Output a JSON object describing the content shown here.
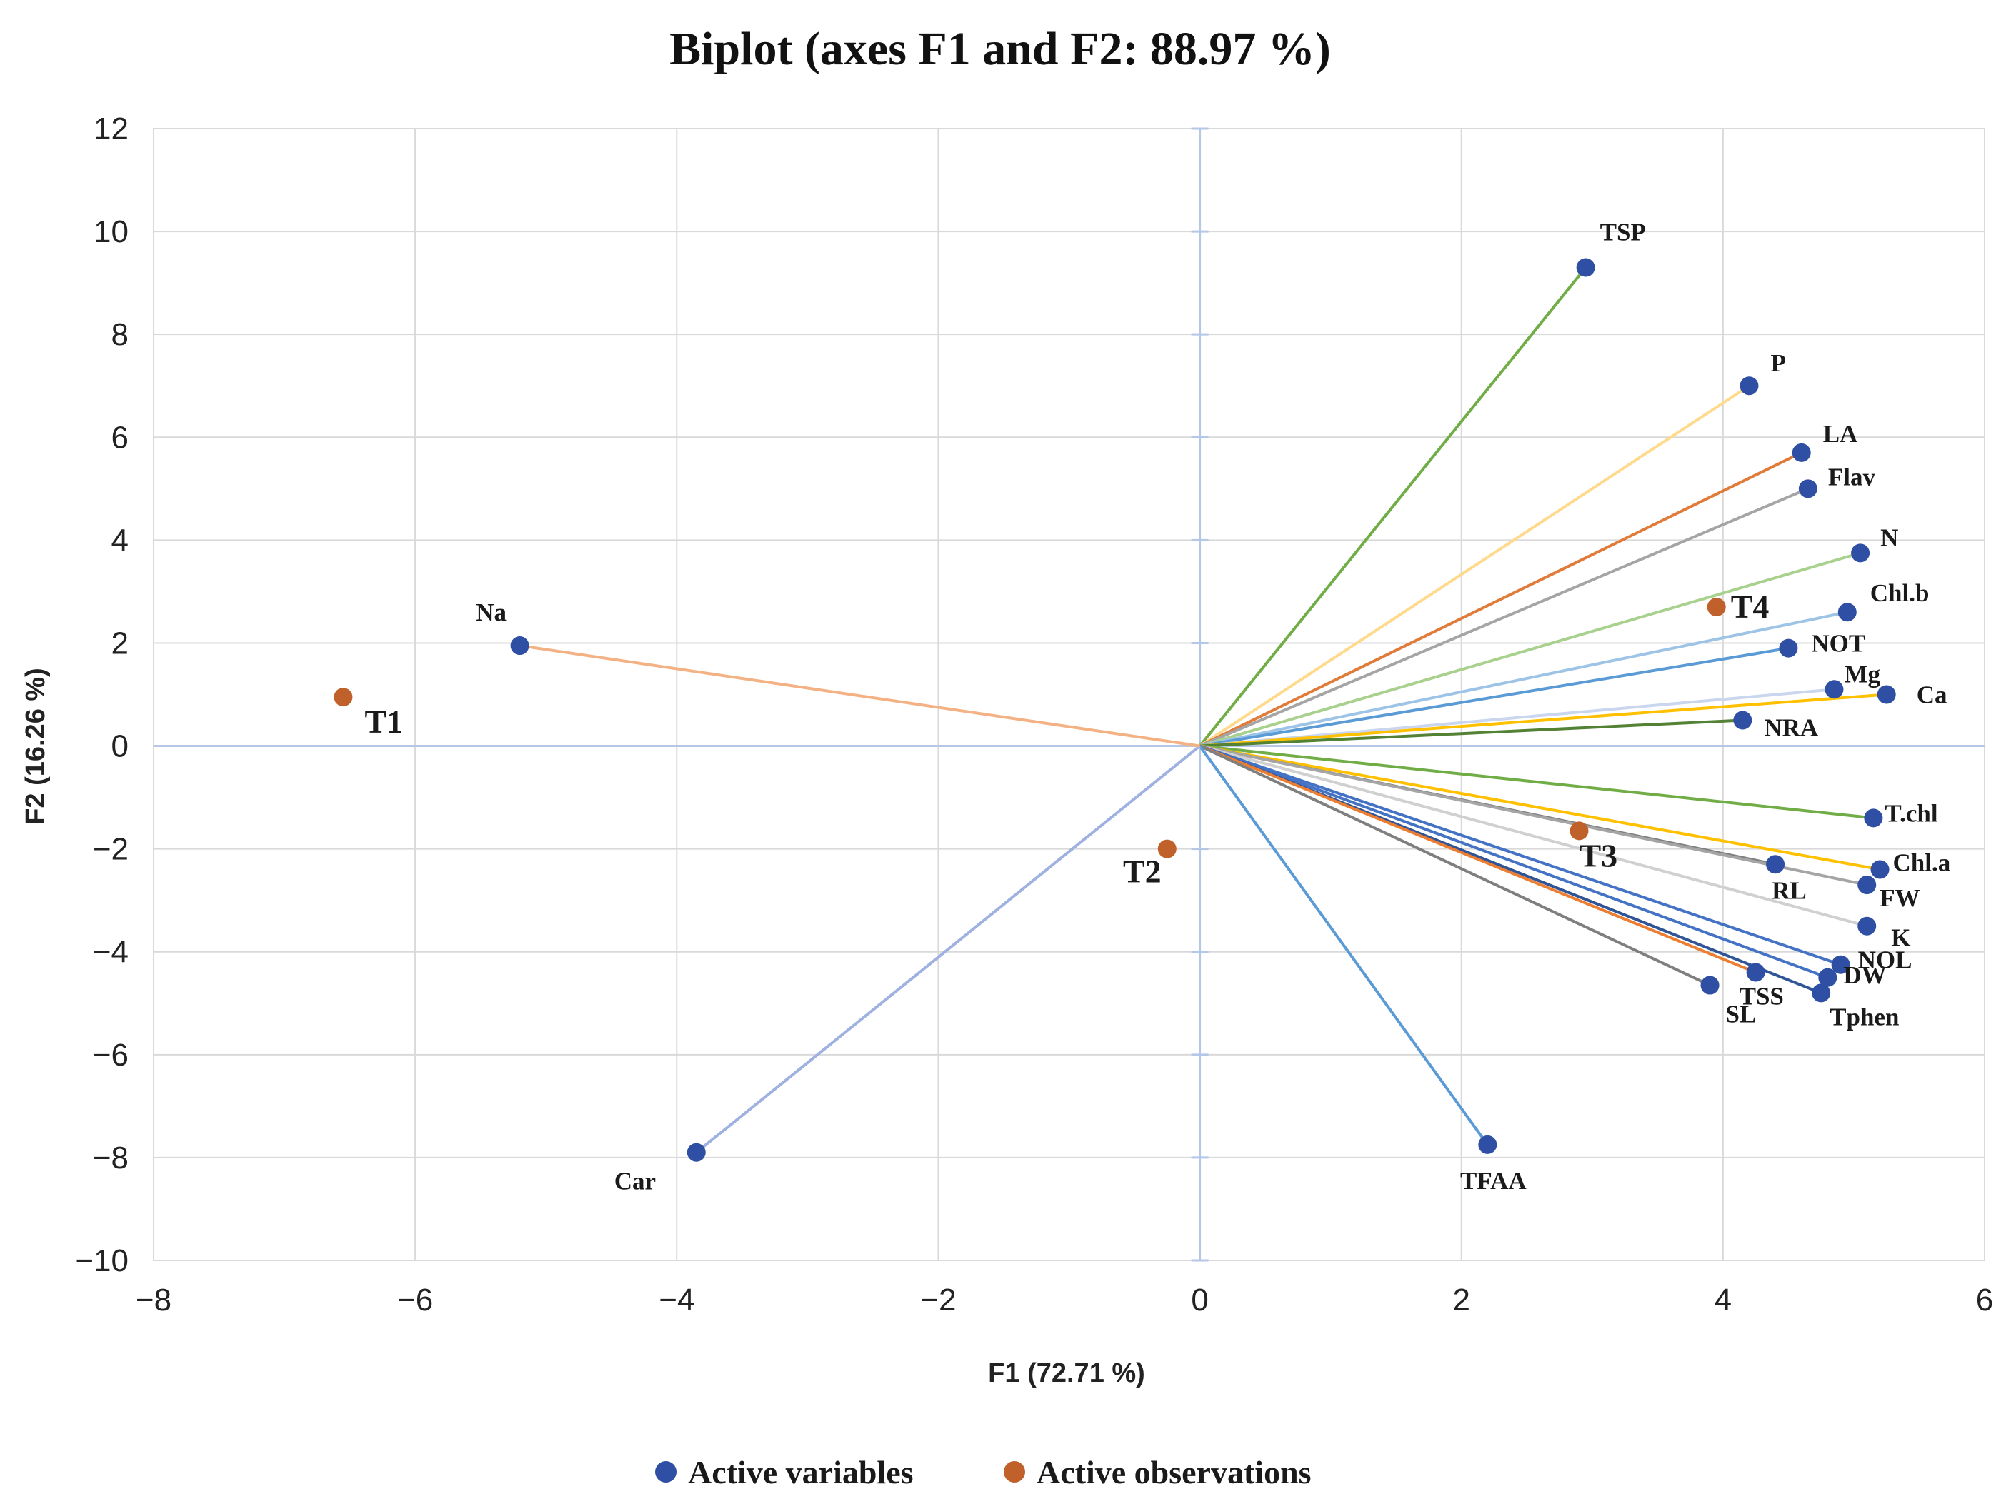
{
  "chart_data": {
    "type": "scatter",
    "subtype": "biplot",
    "title": "Biplot (axes F1 and F2: 88.97 %)",
    "xlabel": "F1 (72.71 %)",
    "ylabel": "F2 (16.26 %)",
    "xlim": [
      -8,
      6
    ],
    "ylim": [
      -10,
      12
    ],
    "xticks": [
      -8,
      -6,
      -4,
      -2,
      0,
      2,
      4,
      6
    ],
    "yticks": [
      -10,
      -8,
      -6,
      -4,
      -2,
      0,
      2,
      4,
      6,
      8,
      10,
      12
    ],
    "x_tick_labels": [
      "−8",
      "−6",
      "−4",
      "−2",
      "0",
      "2",
      "4",
      "6"
    ],
    "y_tick_labels": [
      "−10",
      "−8",
      "−6",
      "−4",
      "−2",
      "0",
      "2",
      "4",
      "6",
      "8",
      "10",
      "12"
    ],
    "grid": true,
    "legend": {
      "placement": "bottom",
      "entries": [
        {
          "label": "Active variables",
          "color": "#2e4fa3"
        },
        {
          "label": "Active observations",
          "color": "#c0612b"
        }
      ]
    },
    "series": [
      {
        "name": "Active variables",
        "color": "#2e4fa3",
        "points": [
          {
            "label": "TSP",
            "x": 2.95,
            "y": 9.3,
            "line_color": "#70ad47"
          },
          {
            "label": "P",
            "x": 4.2,
            "y": 7.0,
            "line_color": "#ffd98c"
          },
          {
            "label": "LA",
            "x": 4.6,
            "y": 5.7,
            "line_color": "#e07b39"
          },
          {
            "label": "Flav",
            "x": 4.65,
            "y": 5.0,
            "line_color": "#a5a5a5"
          },
          {
            "label": "N",
            "x": 5.05,
            "y": 3.75,
            "line_color": "#a9d18e"
          },
          {
            "label": "Chl.b",
            "x": 4.95,
            "y": 2.6,
            "line_color": "#9dc3e6"
          },
          {
            "label": "NOT",
            "x": 4.5,
            "y": 1.9,
            "line_color": "#5b9bd5"
          },
          {
            "label": "Mg",
            "x": 4.85,
            "y": 1.1,
            "line_color": "#c9d6ee"
          },
          {
            "label": "Ca",
            "x": 5.25,
            "y": 1.0,
            "line_color": "#ffc000"
          },
          {
            "label": "NRA",
            "x": 4.15,
            "y": 0.5,
            "line_color": "#548235"
          },
          {
            "label": "T.chl",
            "x": 5.15,
            "y": -1.4,
            "line_color": "#70ad47"
          },
          {
            "label": "Chl.a",
            "x": 5.2,
            "y": -2.4,
            "line_color": "#ffc000"
          },
          {
            "label": "RL",
            "x": 4.4,
            "y": -2.3,
            "line_color": "#7f7f7f"
          },
          {
            "label": "FW",
            "x": 5.1,
            "y": -2.7,
            "line_color": "#a5a5a5"
          },
          {
            "label": "K",
            "x": 5.1,
            "y": -3.5,
            "line_color": "#d0d0d0"
          },
          {
            "label": "NOL",
            "x": 4.9,
            "y": -4.25,
            "line_color": "#4472c4"
          },
          {
            "label": "DW",
            "x": 4.8,
            "y": -4.5,
            "line_color": "#4472c4"
          },
          {
            "label": "Tphen",
            "x": 4.75,
            "y": -4.8,
            "line_color": "#2f5597"
          },
          {
            "label": "TSS",
            "x": 4.25,
            "y": -4.4,
            "line_color": "#ed7d31"
          },
          {
            "label": "SL",
            "x": 3.9,
            "y": -4.65,
            "line_color": "#7f7f7f"
          },
          {
            "label": "TFAA",
            "x": 2.2,
            "y": -7.75,
            "line_color": "#5b9bd5"
          },
          {
            "label": "Car",
            "x": -3.85,
            "y": -7.9,
            "line_color": "#9fb1e0"
          },
          {
            "label": "Na",
            "x": -5.2,
            "y": 1.95,
            "line_color": "#f4b183"
          }
        ]
      },
      {
        "name": "Active observations",
        "color": "#c0612b",
        "points": [
          {
            "label": "T1",
            "x": -6.55,
            "y": 0.95
          },
          {
            "label": "T2",
            "x": -0.25,
            "y": -2.0
          },
          {
            "label": "T3",
            "x": 2.9,
            "y": -1.65
          },
          {
            "label": "T4",
            "x": 3.95,
            "y": 2.7
          }
        ]
      }
    ]
  }
}
